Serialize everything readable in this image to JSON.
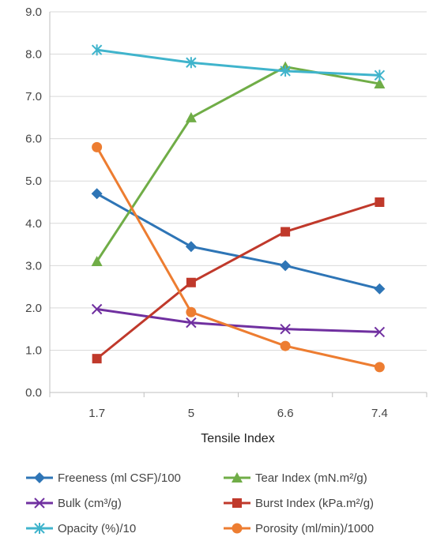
{
  "chart_data": {
    "type": "line",
    "title": "",
    "xlabel": "Tensile Index",
    "ylabel": "",
    "categories": [
      "1.7",
      "5",
      "6.6",
      "7.4"
    ],
    "ylim": [
      0,
      9
    ],
    "yticks": [
      "0.0",
      "1.0",
      "2.0",
      "3.0",
      "4.0",
      "5.0",
      "6.0",
      "7.0",
      "8.0",
      "9.0"
    ],
    "grid": true,
    "legend_position": "bottom",
    "series": [
      {
        "name": "Freeness (ml CSF)/100",
        "values": [
          4.7,
          3.45,
          3.0,
          2.45
        ],
        "color": "#2E75B6",
        "marker": "diamond"
      },
      {
        "name": "Tear Index (mN.m²/g)",
        "values": [
          3.1,
          6.5,
          7.7,
          7.3
        ],
        "color": "#70AD47",
        "marker": "triangle"
      },
      {
        "name": "Bulk (cm³/g)",
        "values": [
          1.97,
          1.65,
          1.5,
          1.43
        ],
        "color": "#7030A0",
        "marker": "x"
      },
      {
        "name": "Burst Index (kPa.m²/g)",
        "values": [
          0.8,
          2.6,
          3.8,
          4.5
        ],
        "color": "#C0392B",
        "marker": "square"
      },
      {
        "name": "Opacity (%)/10",
        "values": [
          8.1,
          7.8,
          7.6,
          7.5
        ],
        "color": "#40B4CC",
        "marker": "star"
      },
      {
        "name": "Porosity (ml/min)/1000",
        "values": [
          5.8,
          1.9,
          1.1,
          0.6
        ],
        "color": "#ED7D31",
        "marker": "circle"
      }
    ]
  }
}
